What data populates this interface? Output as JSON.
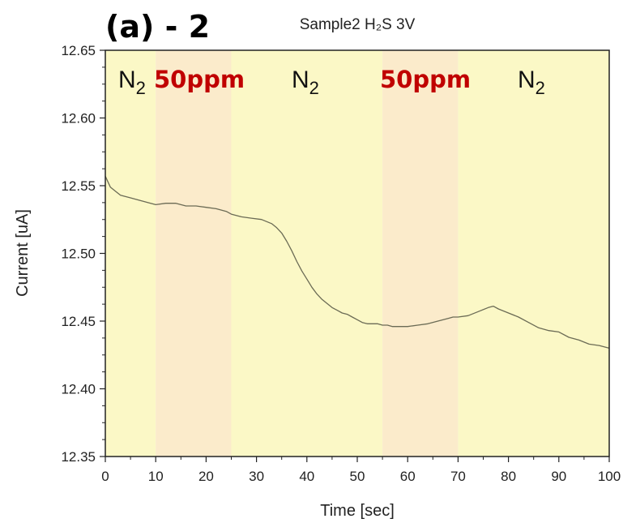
{
  "chart_data": {
    "type": "line",
    "panel_label": "(a) - 2",
    "title": "Sample2 H₂S 3V",
    "xlabel": "Time [sec]",
    "ylabel": "Current [uA]",
    "xlim": [
      0,
      100
    ],
    "ylim": [
      12.35,
      12.65
    ],
    "x_ticks": [
      "0",
      "10",
      "20",
      "30",
      "40",
      "50",
      "60",
      "70",
      "80",
      "90",
      "100"
    ],
    "y_ticks": [
      "12.35",
      "12.40",
      "12.45",
      "12.50",
      "12.55",
      "12.60",
      "12.65"
    ],
    "grid": false,
    "colors": {
      "n2_region": "#fbf8c6",
      "h2s_region": "#fbebcb",
      "line": "#6b6b55",
      "ppm_label": "#c00000"
    },
    "regions": [
      {
        "label": "N",
        "subscript": "2",
        "x_start": 0,
        "x_end": 10,
        "gas": "n2"
      },
      {
        "label": "50ppm",
        "subscript": "",
        "x_start": 10,
        "x_end": 25,
        "gas": "h2s"
      },
      {
        "label": "N",
        "subscript": "2",
        "x_start": 25,
        "x_end": 55,
        "gas": "n2"
      },
      {
        "label": "50ppm",
        "subscript": "",
        "x_start": 55,
        "x_end": 70,
        "gas": "h2s"
      },
      {
        "label": "N",
        "subscript": "2",
        "x_start": 70,
        "x_end": 100,
        "gas": "n2"
      }
    ],
    "series": [
      {
        "x": [
          0,
          1,
          2,
          3,
          5,
          7,
          9,
          10,
          12,
          14,
          16,
          18,
          20,
          22,
          24,
          25,
          27,
          29,
          31,
          33,
          34,
          35,
          36,
          37,
          38,
          39,
          40,
          41,
          42,
          43,
          44,
          45,
          46,
          47,
          48,
          49,
          50,
          51,
          52,
          53,
          54,
          55,
          56,
          57,
          58,
          60,
          62,
          64,
          66,
          68,
          69,
          70,
          72,
          74,
          76,
          77,
          78,
          80,
          82,
          84,
          86,
          88,
          90,
          92,
          94,
          96,
          98,
          100
        ],
        "y": [
          12.557,
          12.549,
          12.546,
          12.543,
          12.541,
          12.539,
          12.537,
          12.536,
          12.537,
          12.537,
          12.535,
          12.535,
          12.534,
          12.533,
          12.531,
          12.529,
          12.527,
          12.526,
          12.525,
          12.522,
          12.519,
          12.515,
          12.509,
          12.502,
          12.494,
          12.487,
          12.481,
          12.475,
          12.47,
          12.466,
          12.463,
          12.46,
          12.458,
          12.456,
          12.455,
          12.453,
          12.451,
          12.449,
          12.448,
          12.448,
          12.448,
          12.447,
          12.447,
          12.446,
          12.446,
          12.446,
          12.447,
          12.448,
          12.45,
          12.452,
          12.453,
          12.453,
          12.454,
          12.457,
          12.46,
          12.461,
          12.459,
          12.456,
          12.453,
          12.449,
          12.445,
          12.443,
          12.442,
          12.438,
          12.436,
          12.433,
          12.432,
          12.43
        ]
      }
    ]
  }
}
